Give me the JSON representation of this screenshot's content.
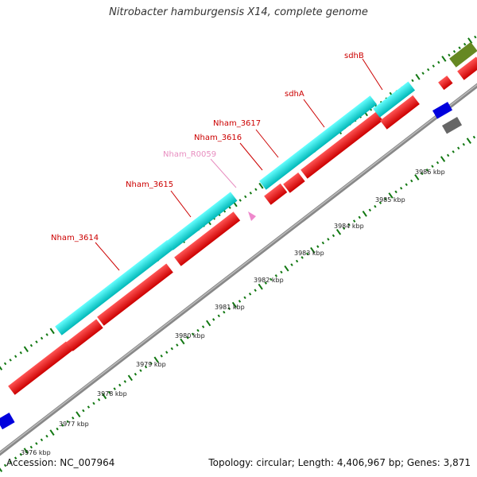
{
  "title": "Nitrobacter hamburgensis X14, complete genome",
  "footer": {
    "accession": "Accession: NC_007964",
    "summary": "Topology: circular; Length: 4,406,967 bp; Genes: 3,871"
  },
  "scale": {
    "unit": "kbp",
    "ticks": [
      "3976 kbp",
      "3977 kbp",
      "3978 kbp",
      "3979 kbp",
      "3980 kbp",
      "3981 kbp",
      "3982 kbp",
      "3983 kbp",
      "3984 kbp",
      "3985 kbp",
      "3986 kbp"
    ]
  },
  "gene_labels": [
    {
      "name": "Nham_3614",
      "color": "#cc0000"
    },
    {
      "name": "Nham_3615",
      "color": "#cc0000"
    },
    {
      "name": "Nham_R0059",
      "color": "#e88ec0"
    },
    {
      "name": "Nham_3616",
      "color": "#cc0000"
    },
    {
      "name": "Nham_3617",
      "color": "#cc0000"
    },
    {
      "name": "sdhA",
      "color": "#cc0000"
    },
    {
      "name": "sdhB",
      "color": "#cc0000"
    }
  ],
  "colors": {
    "cds": "#ee0000",
    "cds_feature": "#00dddd",
    "rna": "#ee88cc",
    "other_blue": "#0000dd",
    "other_olive": "#668822",
    "other_gray": "#666666",
    "backbone": "#888888",
    "ticks": "#117711"
  }
}
